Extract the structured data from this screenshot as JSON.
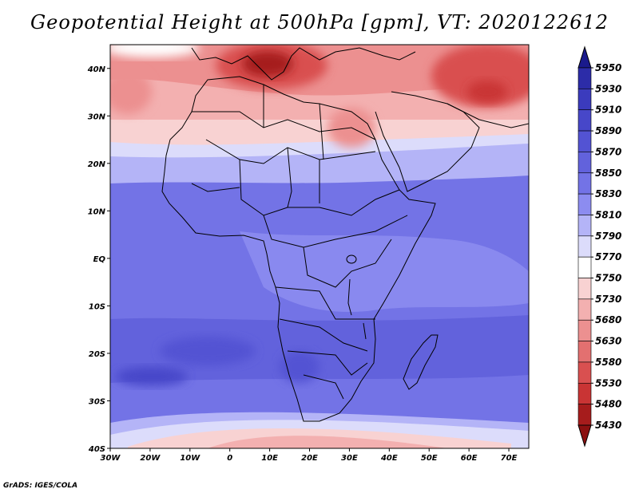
{
  "title": "Geopotential Height at 500hPa [gpm], VT: 2020122612",
  "credit": "GrADS: IGES/COLA",
  "map": {
    "lon_range": [
      -30,
      75
    ],
    "lat_range": [
      -40,
      45
    ],
    "lon_ticks": [
      "30W",
      "20W",
      "10W",
      "0",
      "10E",
      "20E",
      "30E",
      "40E",
      "50E",
      "60E",
      "70E"
    ],
    "lat_ticks": [
      "40N",
      "30N",
      "20N",
      "10N",
      "EQ",
      "10S",
      "20S",
      "30S",
      "40S"
    ]
  },
  "colorbar": {
    "levels": [
      "5950",
      "5930",
      "5910",
      "5890",
      "5870",
      "5850",
      "5830",
      "5810",
      "5790",
      "5770",
      "5750",
      "5730",
      "5680",
      "5630",
      "5580",
      "5530",
      "5480",
      "5430"
    ],
    "colors": [
      "#1a1a8c",
      "#2c2ca8",
      "#3b3bbd",
      "#4747c9",
      "#5353d3",
      "#6262dc",
      "#7373e6",
      "#8c8cf0",
      "#b4b4f7",
      "#dcdcfb",
      "#ffffff",
      "#f8d2d2",
      "#f3b0b0",
      "#ec9090",
      "#e37070",
      "#d95050",
      "#c93434",
      "#a61c1c",
      "#8b1010"
    ]
  }
}
